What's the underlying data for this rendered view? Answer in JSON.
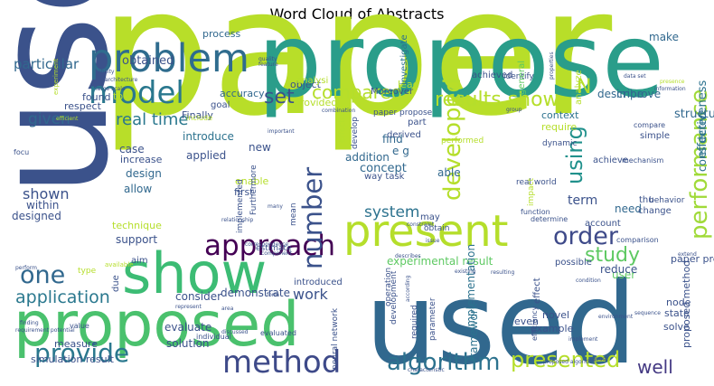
{
  "chart_data": {
    "type": "wordcloud",
    "title": "Word Cloud of Abstracts",
    "palette": "viridis",
    "words": [
      {
        "text": "paper",
        "weight": 100,
        "color": "#b8de29"
      },
      {
        "text": "use",
        "weight": 86,
        "color": "#3b528b"
      },
      {
        "text": "propose",
        "weight": 80,
        "color": "#2a9d8a"
      },
      {
        "text": "used",
        "weight": 76,
        "color": "#31688e"
      },
      {
        "text": "proposed",
        "weight": 46,
        "color": "#4ac16d"
      },
      {
        "text": "show",
        "weight": 43,
        "color": "#3cbc74"
      },
      {
        "text": "present",
        "weight": 33,
        "color": "#b5de2b"
      },
      {
        "text": "problem",
        "weight": 29,
        "color": "#2f6c8e"
      },
      {
        "text": "model",
        "weight": 28,
        "color": "#2a788e"
      },
      {
        "text": "method",
        "weight": 22,
        "color": "#3e4a89"
      },
      {
        "text": "approach",
        "weight": 21,
        "color": "#440154"
      },
      {
        "text": "number",
        "weight": 21,
        "color": "#3b528b"
      },
      {
        "text": "provide",
        "weight": 20,
        "color": "#2a788e"
      },
      {
        "text": "one",
        "weight": 19,
        "color": "#31688e"
      },
      {
        "text": "performance",
        "weight": 18,
        "color": "#a0da39"
      },
      {
        "text": "developed",
        "weight": 18,
        "color": "#b5de2b"
      },
      {
        "text": "algorithm",
        "weight": 18,
        "color": "#2c728e"
      },
      {
        "text": "order",
        "weight": 18,
        "color": "#3e4a89"
      },
      {
        "text": "presented",
        "weight": 17,
        "color": "#b5de2b"
      },
      {
        "text": "using",
        "weight": 17,
        "color": "#21918c"
      },
      {
        "text": "study",
        "weight": 16,
        "color": "#5ec962"
      },
      {
        "text": "results show",
        "weight": 16,
        "color": "#b5de2b"
      },
      {
        "text": "set",
        "weight": 16,
        "color": "#3b528b"
      },
      {
        "text": "N",
        "weight": 16,
        "color": "#b5de2b"
      },
      {
        "text": "compared",
        "weight": 15,
        "color": "#b5de2b"
      },
      {
        "text": "application",
        "weight": 14,
        "color": "#2a788e"
      },
      {
        "text": "well",
        "weight": 14,
        "color": "#443983"
      },
      {
        "text": "real time",
        "weight": 12,
        "color": "#2a788e"
      },
      {
        "text": "given",
        "weight": 12,
        "color": "#31688e"
      },
      {
        "text": "shown",
        "weight": 12,
        "color": "#3b528b"
      },
      {
        "text": "system",
        "weight": 12,
        "color": "#2c728e"
      },
      {
        "text": "work",
        "weight": 12,
        "color": "#3b528b"
      },
      {
        "text": "particular",
        "weight": 11,
        "color": "#31688e"
      },
      {
        "text": "obtained",
        "weight": 10,
        "color": "#3b528b"
      },
      {
        "text": "process",
        "weight": 9,
        "color": "#31688e"
      },
      {
        "text": "make",
        "weight": 10,
        "color": "#31688e"
      },
      {
        "text": "effectiveness",
        "weight": 10,
        "color": "#2c728e"
      },
      {
        "text": "considered",
        "weight": 10,
        "color": "#2c728e"
      },
      {
        "text": "structure",
        "weight": 10,
        "color": "#31688e"
      },
      {
        "text": "term",
        "weight": 11,
        "color": "#3b528b"
      },
      {
        "text": "concept",
        "weight": 10,
        "color": "#31688e"
      },
      {
        "text": "introduce",
        "weight": 10,
        "color": "#2c728e"
      },
      {
        "text": "design",
        "weight": 10,
        "color": "#31688e"
      },
      {
        "text": "allow",
        "weight": 10,
        "color": "#31688e"
      },
      {
        "text": "accuracy",
        "weight": 10,
        "color": "#31688e"
      },
      {
        "text": "experimental result",
        "weight": 10,
        "color": "#5ec962"
      },
      {
        "text": "implementation",
        "weight": 10,
        "color": "#2c728e"
      },
      {
        "text": "framework",
        "weight": 10,
        "color": "#2c728e"
      },
      {
        "text": "proposed method",
        "weight": 9,
        "color": "#3b528b"
      },
      {
        "text": "paper present",
        "weight": 9,
        "color": "#3b528b"
      },
      {
        "text": "describe",
        "weight": 10,
        "color": "#31688e"
      },
      {
        "text": "improve",
        "weight": 10,
        "color": "#31688e"
      },
      {
        "text": "context",
        "weight": 9,
        "color": "#2c728e"
      },
      {
        "text": "require",
        "weight": 9,
        "color": "#b5de2b"
      },
      {
        "text": "need",
        "weight": 10,
        "color": "#31688e"
      },
      {
        "text": "able",
        "weight": 10,
        "color": "#31688e"
      },
      {
        "text": "find",
        "weight": 10,
        "color": "#31688e"
      },
      {
        "text": "e g",
        "weight": 10,
        "color": "#31688e"
      },
      {
        "text": "addition",
        "weight": 10,
        "color": "#31688e"
      },
      {
        "text": "user",
        "weight": 10,
        "color": "#5ec962"
      },
      {
        "text": "node",
        "weight": 9,
        "color": "#3b528b"
      },
      {
        "text": "state",
        "weight": 9,
        "color": "#3b528b"
      },
      {
        "text": "solve",
        "weight": 9,
        "color": "#3b528b"
      },
      {
        "text": "reduce",
        "weight": 9,
        "color": "#3b528b"
      },
      {
        "text": "possible",
        "weight": 8,
        "color": "#3b528b"
      },
      {
        "text": "designed",
        "weight": 9,
        "color": "#3b528b"
      },
      {
        "text": "within",
        "weight": 9,
        "color": "#3b528b"
      },
      {
        "text": "support",
        "weight": 9,
        "color": "#3b528b"
      },
      {
        "text": "technique",
        "weight": 9,
        "color": "#b5de2b"
      },
      {
        "text": "consider",
        "weight": 9,
        "color": "#3b528b"
      },
      {
        "text": "demonstrate",
        "weight": 9,
        "color": "#3b528b"
      },
      {
        "text": "evaluate",
        "weight": 9,
        "color": "#3b528b"
      },
      {
        "text": "solution",
        "weight": 9,
        "color": "#3b528b"
      },
      {
        "text": "measure",
        "weight": 8,
        "color": "#3b528b"
      },
      {
        "text": "simulation result",
        "weight": 8,
        "color": "#3b528b"
      },
      {
        "text": "example",
        "weight": 8,
        "color": "#3b528b"
      },
      {
        "text": "novel",
        "weight": 8,
        "color": "#3b528b"
      },
      {
        "text": "even",
        "weight": 8,
        "color": "#3b528b"
      },
      {
        "text": "case",
        "weight": 9,
        "color": "#3b528b"
      },
      {
        "text": "increase",
        "weight": 8,
        "color": "#3b528b"
      },
      {
        "text": "applied",
        "weight": 9,
        "color": "#3b528b"
      },
      {
        "text": "new",
        "weight": 9,
        "color": "#3b528b"
      },
      {
        "text": "first",
        "weight": 8,
        "color": "#3b528b"
      },
      {
        "text": "enable",
        "weight": 8,
        "color": "#b5de2b"
      },
      {
        "text": "Finally",
        "weight": 8,
        "color": "#3b528b"
      },
      {
        "text": "tool",
        "weight": 8,
        "color": "#b5de2b"
      },
      {
        "text": "found",
        "weight": 8,
        "color": "#3b528b"
      },
      {
        "text": "respect",
        "weight": 8,
        "color": "#3b528b"
      },
      {
        "text": "goal",
        "weight": 8,
        "color": "#3b528b"
      },
      {
        "text": "object",
        "weight": 8,
        "color": "#3b528b"
      },
      {
        "text": "lead",
        "weight": 8,
        "color": "#b5de2b"
      },
      {
        "text": "provided",
        "weight": 8,
        "color": "#b5de2b"
      },
      {
        "text": "analysi",
        "weight": 8,
        "color": "#b5de2b"
      },
      {
        "text": "Moreover",
        "weight": 8,
        "color": "#3b528b"
      },
      {
        "text": "investigate",
        "weight": 8,
        "color": "#2c728e"
      },
      {
        "text": "achieved",
        "weight": 8,
        "color": "#3b528b"
      },
      {
        "text": "identify",
        "weight": 7,
        "color": "#3b528b"
      },
      {
        "text": "general",
        "weight": 8,
        "color": "#5ec962"
      },
      {
        "text": "analyze",
        "weight": 8,
        "color": "#b5de2b"
      },
      {
        "text": "derived",
        "weight": 8,
        "color": "#3b528b"
      },
      {
        "text": "part",
        "weight": 8,
        "color": "#3b528b"
      },
      {
        "text": "paper propose",
        "weight": 7,
        "color": "#3b528b"
      },
      {
        "text": "way task",
        "weight": 8,
        "color": "#3b528b"
      },
      {
        "text": "dynamic",
        "weight": 7,
        "color": "#3b528b"
      },
      {
        "text": "achieve",
        "weight": 8,
        "color": "#3b528b"
      },
      {
        "text": "simple",
        "weight": 8,
        "color": "#3b528b"
      },
      {
        "text": "change",
        "weight": 8,
        "color": "#3b528b"
      },
      {
        "text": "thu",
        "weight": 8,
        "color": "#3b528b"
      },
      {
        "text": "account",
        "weight": 8,
        "color": "#3b528b"
      },
      {
        "text": "behavior",
        "weight": 7,
        "color": "#3b528b"
      },
      {
        "text": "effect",
        "weight": 8,
        "color": "#3b528b"
      },
      {
        "text": "real world",
        "weight": 7,
        "color": "#3b528b"
      },
      {
        "text": "impact",
        "weight": 7,
        "color": "#b5de2b"
      },
      {
        "text": "performed",
        "weight": 7,
        "color": "#b5de2b"
      },
      {
        "text": "effective",
        "weight": 7,
        "color": "#b5de2b"
      },
      {
        "text": "develop",
        "weight": 7,
        "color": "#3b528b"
      },
      {
        "text": "may",
        "weight": 8,
        "color": "#3b528b"
      },
      {
        "text": "obtain",
        "weight": 7,
        "color": "#3b528b"
      },
      {
        "text": "operation",
        "weight": 7,
        "color": "#3b528b"
      },
      {
        "text": "development",
        "weight": 7,
        "color": "#3b528b"
      },
      {
        "text": "required",
        "weight": 7,
        "color": "#3b528b"
      },
      {
        "text": "parameter",
        "weight": 7,
        "color": "#3b528b"
      },
      {
        "text": "neural network",
        "weight": 7,
        "color": "#3b528b"
      },
      {
        "text": "implemented",
        "weight": 7,
        "color": "#3b528b"
      },
      {
        "text": "Furthermore",
        "weight": 7,
        "color": "#3b528b"
      },
      {
        "text": "estimate",
        "weight": 7,
        "color": "#3b528b"
      },
      {
        "text": "introduced",
        "weight": 7,
        "color": "#3b528b"
      },
      {
        "text": "mean",
        "weight": 7,
        "color": "#3b528b"
      },
      {
        "text": "aim",
        "weight": 8,
        "color": "#3b528b"
      },
      {
        "text": "due",
        "weight": 8,
        "color": "#3b528b"
      },
      {
        "text": "type",
        "weight": 7,
        "color": "#b5de2b"
      },
      {
        "text": "value",
        "weight": 6,
        "color": "#3b528b"
      },
      {
        "text": "individual",
        "weight": 6,
        "color": "#3b528b"
      },
      {
        "text": "evaluated",
        "weight": 6,
        "color": "#3b528b"
      },
      {
        "text": "focu",
        "weight": 6,
        "color": "#3b528b"
      },
      {
        "text": "include",
        "weight": 6,
        "color": "#b5de2b"
      },
      {
        "text": "mechanism",
        "weight": 6,
        "color": "#3b528b"
      },
      {
        "text": "compare",
        "weight": 6,
        "color": "#3b528b"
      },
      {
        "text": "function",
        "weight": 6,
        "color": "#3b528b"
      },
      {
        "text": "determine",
        "weight": 6,
        "color": "#3b528b"
      },
      {
        "text": "comparison",
        "weight": 6,
        "color": "#3b528b"
      },
      {
        "text": "efficiency",
        "weight": 6,
        "color": "#3b528b"
      },
      {
        "text": "experiment",
        "weight": 6,
        "color": "#b5de2b"
      },
      {
        "text": "available",
        "weight": 6,
        "color": "#b5de2b"
      },
      {
        "text": "group",
        "weight": 5,
        "color": "#3b528b"
      },
      {
        "text": "quality",
        "weight": 5,
        "color": "#3b528b"
      },
      {
        "text": "feature",
        "weight": 5,
        "color": "#3b528b"
      },
      {
        "text": "information",
        "weight": 5,
        "color": "#3b528b"
      },
      {
        "text": "ability",
        "weight": 5,
        "color": "#3b528b"
      },
      {
        "text": "architecture",
        "weight": 5,
        "color": "#3b528b"
      },
      {
        "text": "large scale",
        "weight": 5,
        "color": "#3b528b"
      },
      {
        "text": "data set",
        "weight": 5,
        "color": "#3b528b"
      },
      {
        "text": "properties",
        "weight": 5,
        "color": "#3b528b"
      },
      {
        "text": "presence",
        "weight": 5,
        "color": "#b5de2b"
      },
      {
        "text": "combination",
        "weight": 5,
        "color": "#3b528b"
      },
      {
        "text": "important",
        "weight": 5,
        "color": "#3b528b"
      },
      {
        "text": "relationship",
        "weight": 5,
        "color": "#3b528b"
      },
      {
        "text": "constraint",
        "weight": 5,
        "color": "#3b528b"
      },
      {
        "text": "describes",
        "weight": 5,
        "color": "#3b528b"
      },
      {
        "text": "correspondence",
        "weight": 5,
        "color": "#3b528b"
      },
      {
        "text": "component",
        "weight": 5,
        "color": "#3b528b"
      },
      {
        "text": "represent",
        "weight": 5,
        "color": "#3b528b"
      },
      {
        "text": "finding",
        "weight": 5,
        "color": "#3b528b"
      },
      {
        "text": "requirement potential",
        "weight": 5,
        "color": "#3b528b"
      },
      {
        "text": "discussed",
        "weight": 5,
        "color": "#3b528b"
      },
      {
        "text": "resulting",
        "weight": 5,
        "color": "#3b528b"
      },
      {
        "text": "condition",
        "weight": 5,
        "color": "#3b528b"
      },
      {
        "text": "existing",
        "weight": 5,
        "color": "#3b528b"
      },
      {
        "text": "environment",
        "weight": 5,
        "color": "#3b528b"
      },
      {
        "text": "implement",
        "weight": 5,
        "color": "#3b528b"
      },
      {
        "text": "robust",
        "weight": 5,
        "color": "#3b528b"
      },
      {
        "text": "proposed algorithm",
        "weight": 5,
        "color": "#3b528b"
      },
      {
        "text": "characteristic",
        "weight": 5,
        "color": "#3b528b"
      },
      {
        "text": "sequence",
        "weight": 5,
        "color": "#3b528b"
      },
      {
        "text": "issue",
        "weight": 5,
        "color": "#3b528b"
      },
      {
        "text": "according",
        "weight": 5,
        "color": "#3b528b"
      },
      {
        "text": "efficient",
        "weight": 5,
        "color": "#b5de2b"
      },
      {
        "text": "perform",
        "weight": 5,
        "color": "#3b528b"
      },
      {
        "text": "many",
        "weight": 5,
        "color": "#3b528b"
      },
      {
        "text": "form",
        "weight": 5,
        "color": "#3b528b"
      },
      {
        "text": "area",
        "weight": 5,
        "color": "#3b528b"
      },
      {
        "text": "extend",
        "weight": 5,
        "color": "#3b528b"
      }
    ]
  }
}
